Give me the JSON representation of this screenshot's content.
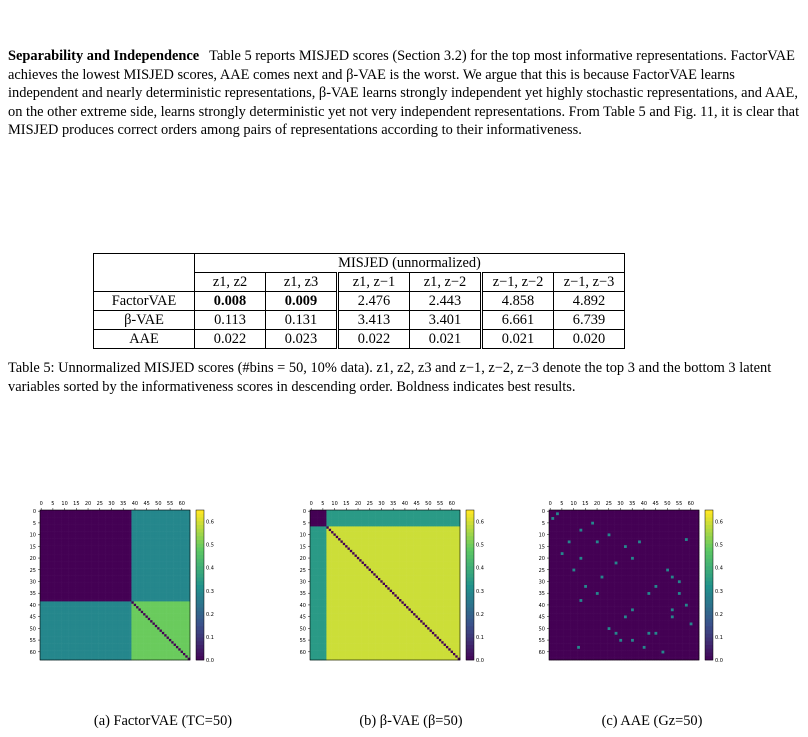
{
  "paragraph": {
    "heading": "Separability and Independence",
    "text": "Table 5 reports MISJED scores (Section 3.2) for the top most informative representations. FactorVAE achieves the lowest MISJED scores, AAE comes next and β-VAE is the worst. We argue that this is because FactorVAE learns independent and nearly deterministic representations, β-VAE learns strongly independent yet highly stochastic representations, and AAE, on the other extreme side, learns strongly deterministic yet not very independent representations. From Table 5 and Fig. 11, it is clear that MISJED produces correct orders among pairs of representations according to their informativeness."
  },
  "table": {
    "group_header": "MISJED (unnormalized)",
    "columns": [
      "z1, z2",
      "z1, z3",
      "z1, z−1",
      "z1, z−2",
      "z−1, z−2",
      "z−1, z−3"
    ],
    "rows": [
      {
        "label": "FactorVAE",
        "values": [
          "0.008",
          "0.009",
          "2.476",
          "2.443",
          "4.858",
          "4.892"
        ],
        "bold": [
          true,
          true,
          false,
          false,
          false,
          false
        ]
      },
      {
        "label": "β-VAE",
        "values": [
          "0.113",
          "0.131",
          "3.413",
          "3.401",
          "6.661",
          "6.739"
        ],
        "bold": [
          false,
          false,
          false,
          false,
          false,
          false
        ]
      },
      {
        "label": "AAE",
        "values": [
          "0.022",
          "0.023",
          "0.022",
          "0.021",
          "0.021",
          "0.020"
        ],
        "bold": [
          false,
          false,
          false,
          false,
          false,
          false
        ]
      }
    ]
  },
  "caption": {
    "text": "Table 5: Unnormalized MISJED scores (#bins = 50, 10% data). z1, z2, z3 and z−1, z−2, z−3 denote the top 3 and the bottom 3 latent variables sorted by the informativeness scores in descending order. Boldness indicates best results."
  },
  "figure": {
    "x_ticks": [
      "0",
      "5",
      "10",
      "15",
      "20",
      "25",
      "30",
      "35",
      "40",
      "45",
      "50",
      "55",
      "60"
    ],
    "y_ticks": [
      "0",
      "5",
      "10",
      "15",
      "20",
      "25",
      "30",
      "35",
      "40",
      "45",
      "50",
      "55",
      "60"
    ],
    "colorbar_ticks": [
      "0.6",
      "0.5",
      "0.4",
      "0.3",
      "0.2",
      "0.1",
      "0.0"
    ],
    "panels": [
      {
        "caption": "(a) FactorVAE (TC=50)"
      },
      {
        "caption": "(b) β-VAE (β=50)"
      },
      {
        "caption": "(c) AAE (Gz=50)"
      }
    ]
  },
  "chart_data": [
    {
      "type": "heatmap",
      "title": "",
      "xlabel": "",
      "ylabel": "",
      "size": 64,
      "structure": "two blocks split at index 39; top-left block low, off-diagonal blocks medium, bottom-right block high, dark diagonal",
      "values": {
        "top_left": 0.0,
        "off_diagonal": 0.3,
        "bottom_right": 0.5,
        "diagonal": 0.0
      },
      "colorbar_range": [
        0.0,
        0.65
      ]
    },
    {
      "type": "heatmap",
      "title": "",
      "xlabel": "",
      "ylabel": "",
      "size": 64,
      "structure": "small low block at top-left (indices 0-6), medium border strips, high everywhere else, dark diagonal",
      "values": {
        "top_left": 0.0,
        "border": 0.35,
        "rest": 0.6,
        "diagonal": 0.0
      },
      "colorbar_range": [
        0.0,
        0.65
      ]
    },
    {
      "type": "heatmap",
      "title": "",
      "xlabel": "",
      "ylabel": "",
      "size": 64,
      "structure": "nearly all low values with a few scattered medium cells and a faint diagonal",
      "values": {
        "background": 0.0,
        "scattered": 0.3
      },
      "colorbar_range": [
        0.0,
        0.65
      ]
    }
  ]
}
